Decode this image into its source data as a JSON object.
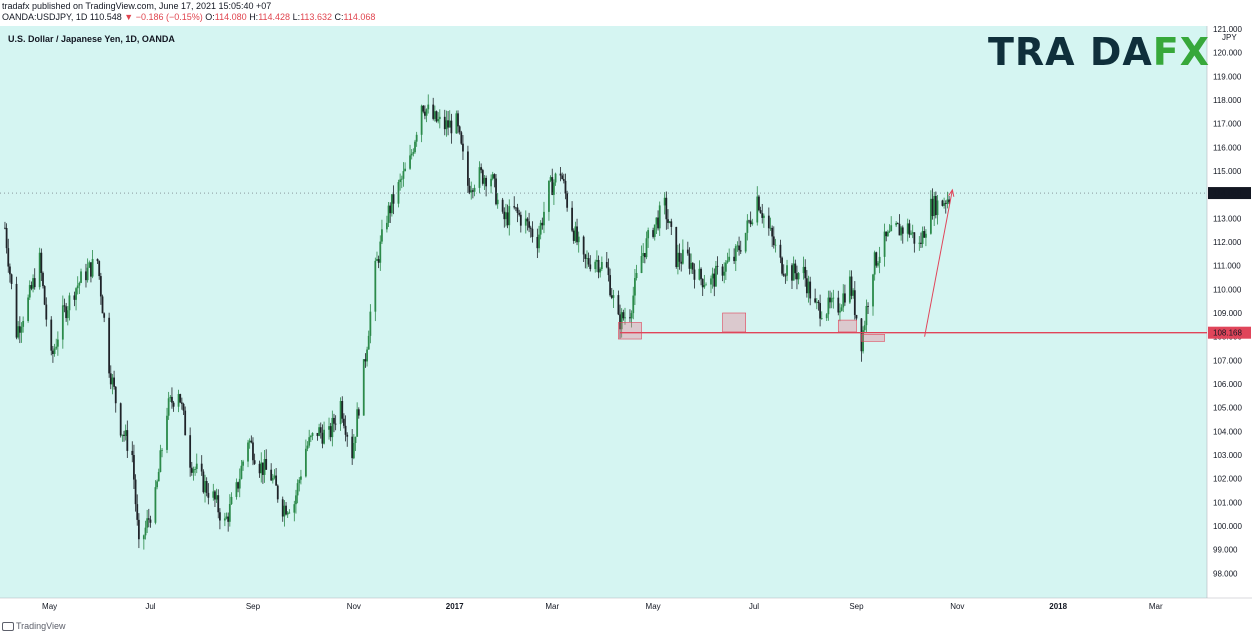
{
  "header": {
    "line1": "tradafx published on TradingView.com, June 17, 2021 15:05:40 +07",
    "symbol": "OANDA:USDJPY, 1D",
    "price": "110.548",
    "arrow": "▼",
    "change": "−0.186 (−0.15%)",
    "o_label": "O:",
    "o": "114.080",
    "h_label": "H:",
    "h": "114.428",
    "l_label": "L:",
    "l": "113.632",
    "c_label": "C:",
    "c": "114.068"
  },
  "chart_title": "U.S. Dollar / Japanese Yen, 1D, OANDA",
  "logo": {
    "part1": "TRA DA",
    "part2": "FX"
  },
  "footer": {
    "text": "TradingView"
  },
  "colors": {
    "bg": "#d5f5f2",
    "up": "#26a69a",
    "down": "#1f2329",
    "accent": "#e0455a",
    "logo_dark": "#0f2f3b",
    "logo_green": "#37a83a"
  },
  "chart_data": {
    "type": "candlestick",
    "title": "U.S. Dollar / Japanese Yen, 1D, OANDA",
    "y_unit": "JPY",
    "ylim": [
      97.0,
      121.0
    ],
    "y_ticks": [
      98,
      99,
      100,
      101,
      102,
      103,
      104,
      105,
      106,
      107,
      108,
      109,
      110,
      111,
      112,
      113,
      114,
      115,
      116,
      117,
      118,
      119,
      120,
      121
    ],
    "y_tick_labels": [
      "98.000",
      "99.000",
      "100.000",
      "101.000",
      "102.000",
      "103.000",
      "104.000",
      "105.000",
      "106.000",
      "107.000",
      "108.000",
      "109.000",
      "110.000",
      "111.000",
      "112.000",
      "113.000",
      "114.000",
      "115.000",
      "116.000",
      "117.000",
      "118.000",
      "119.000",
      "120.000",
      "121.000"
    ],
    "x_ticks": [
      "May",
      "Jul",
      "Sep",
      "Nov",
      "2017",
      "Mar",
      "May",
      "Jul",
      "Sep",
      "Nov",
      "2018",
      "Mar"
    ],
    "x_tick_dates": [
      "2016-05-01",
      "2016-07-01",
      "2016-09-01",
      "2016-11-01",
      "2017-01-01",
      "2017-03-01",
      "2017-05-01",
      "2017-07-01",
      "2017-09-01",
      "2017-11-01",
      "2018-01-01",
      "2018-03-01"
    ],
    "x_range": [
      "2016-04-01",
      "2018-04-01"
    ],
    "path_points": [
      [
        "2016-04-04",
        112.6
      ],
      [
        "2016-04-11",
        108.2
      ],
      [
        "2016-04-18",
        109.5
      ],
      [
        "2016-04-25",
        111.2
      ],
      [
        "2016-05-02",
        107.0
      ],
      [
        "2016-05-09",
        108.9
      ],
      [
        "2016-05-16",
        110.0
      ],
      [
        "2016-05-23",
        110.7
      ],
      [
        "2016-05-30",
        111.2
      ],
      [
        "2016-06-06",
        106.8
      ],
      [
        "2016-06-13",
        104.2
      ],
      [
        "2016-06-20",
        103.0
      ],
      [
        "2016-06-24",
        99.0
      ],
      [
        "2016-07-04",
        101.2
      ],
      [
        "2016-07-11",
        104.9
      ],
      [
        "2016-07-18",
        105.8
      ],
      [
        "2016-07-25",
        102.8
      ],
      [
        "2016-08-01",
        101.9
      ],
      [
        "2016-08-08",
        101.2
      ],
      [
        "2016-08-15",
        100.1
      ],
      [
        "2016-08-22",
        101.5
      ],
      [
        "2016-08-29",
        103.7
      ],
      [
        "2016-09-05",
        102.6
      ],
      [
        "2016-09-12",
        102.1
      ],
      [
        "2016-09-19",
        100.8
      ],
      [
        "2016-09-26",
        101.0
      ],
      [
        "2016-10-03",
        103.3
      ],
      [
        "2016-10-10",
        104.0
      ],
      [
        "2016-10-17",
        103.8
      ],
      [
        "2016-10-24",
        105.2
      ],
      [
        "2016-10-31",
        103.1
      ],
      [
        "2016-11-07",
        106.6
      ],
      [
        "2016-11-14",
        110.8
      ],
      [
        "2016-11-21",
        113.1
      ],
      [
        "2016-11-28",
        114.3
      ],
      [
        "2016-12-05",
        115.4
      ],
      [
        "2016-12-12",
        117.9
      ],
      [
        "2016-12-19",
        117.2
      ],
      [
        "2016-12-26",
        116.9
      ],
      [
        "2017-01-02",
        117.0
      ],
      [
        "2017-01-09",
        114.4
      ],
      [
        "2017-01-16",
        114.8
      ],
      [
        "2017-01-23",
        114.8
      ],
      [
        "2017-01-30",
        112.9
      ],
      [
        "2017-02-06",
        113.3
      ],
      [
        "2017-02-13",
        112.8
      ],
      [
        "2017-02-20",
        112.1
      ],
      [
        "2017-02-27",
        114.2
      ],
      [
        "2017-03-06",
        115.0
      ],
      [
        "2017-03-13",
        112.7
      ],
      [
        "2017-03-20",
        111.1
      ],
      [
        "2017-03-27",
        111.3
      ],
      [
        "2017-04-03",
        110.8
      ],
      [
        "2017-04-10",
        108.6
      ],
      [
        "2017-04-17",
        109.1
      ],
      [
        "2017-04-24",
        111.4
      ],
      [
        "2017-05-01",
        112.6
      ],
      [
        "2017-05-08",
        113.5
      ],
      [
        "2017-05-15",
        111.3
      ],
      [
        "2017-05-22",
        111.3
      ],
      [
        "2017-05-29",
        110.5
      ],
      [
        "2017-06-05",
        110.3
      ],
      [
        "2017-06-12",
        110.9
      ],
      [
        "2017-06-19",
        111.3
      ],
      [
        "2017-06-26",
        112.4
      ],
      [
        "2017-07-03",
        113.9
      ],
      [
        "2017-07-10",
        112.5
      ],
      [
        "2017-07-17",
        111.1
      ],
      [
        "2017-07-24",
        110.7
      ],
      [
        "2017-07-31",
        110.7
      ],
      [
        "2017-08-07",
        109.2
      ],
      [
        "2017-08-14",
        109.2
      ],
      [
        "2017-08-21",
        109.3
      ],
      [
        "2017-08-28",
        110.3
      ],
      [
        "2017-09-04",
        107.8
      ],
      [
        "2017-09-11",
        111.0
      ],
      [
        "2017-09-18",
        112.0
      ],
      [
        "2017-09-25",
        112.5
      ],
      [
        "2017-10-02",
        112.6
      ],
      [
        "2017-10-09",
        111.8
      ],
      [
        "2017-10-16",
        113.5
      ],
      [
        "2017-10-23",
        113.7
      ],
      [
        "2017-10-30",
        114.1
      ]
    ],
    "levels": [
      {
        "name": "last_price",
        "value": 114.068,
        "label": "114.068",
        "style": "dotted"
      },
      {
        "name": "support",
        "value": 108.168,
        "label": "108.168",
        "style": "solid"
      }
    ],
    "support_zones": [
      {
        "from": "2017-04-10",
        "to": "2017-04-24",
        "low": 107.9,
        "high": 108.6
      },
      {
        "from": "2017-06-12",
        "to": "2017-06-26",
        "low": 108.2,
        "high": 109.0
      },
      {
        "from": "2017-08-21",
        "to": "2017-09-01",
        "low": 108.2,
        "high": 108.7
      },
      {
        "from": "2017-09-04",
        "to": "2017-09-18",
        "low": 107.8,
        "high": 108.1
      }
    ],
    "trend_arrow": {
      "from": [
        "2017-09-18",
        108.0
      ],
      "to": [
        "2017-10-29",
        114.2
      ]
    },
    "grid": false
  }
}
